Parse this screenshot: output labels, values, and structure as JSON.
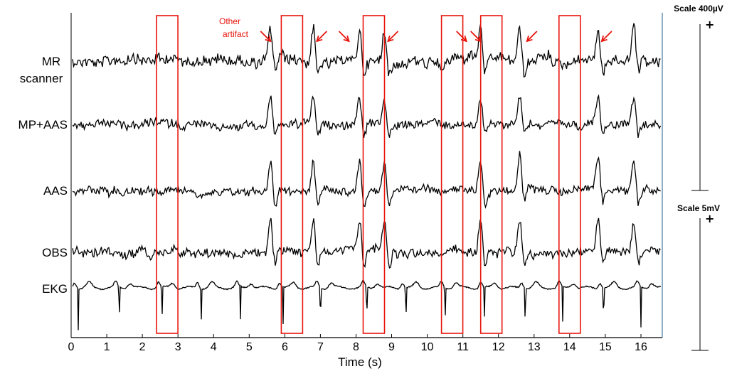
{
  "chart_data": {
    "type": "line",
    "xlabel": "Time (s)",
    "xlim": [
      0,
      16.6
    ],
    "x_ticks": [
      "0",
      "1",
      "2",
      "3",
      "4",
      "5",
      "6",
      "7",
      "8",
      "9",
      "10",
      "11",
      "12",
      "13",
      "14",
      "15",
      "16"
    ],
    "channels": [
      {
        "label_lines": [
          "MR",
          "scanner"
        ]
      },
      {
        "label_lines": [
          "MP+AAS"
        ]
      },
      {
        "label_lines": [
          "AAS"
        ]
      },
      {
        "label_lines": [
          "OBS"
        ]
      },
      {
        "label_lines": [
          "EKG"
        ]
      }
    ],
    "eeg_peak_times": [
      5.6,
      6.8,
      8.1,
      8.8,
      11.5,
      12.6,
      14.8,
      15.8
    ],
    "ekg_beat_times": [
      0.2,
      1.35,
      2.55,
      3.65,
      4.75,
      5.95,
      7.0,
      8.3,
      9.4,
      10.5,
      11.6,
      12.75,
      13.8,
      14.95,
      16.0
    ],
    "artifact_windows": [
      [
        2.4,
        3.0
      ],
      [
        5.9,
        6.5
      ],
      [
        8.2,
        8.8
      ],
      [
        10.4,
        11.0
      ],
      [
        11.5,
        12.1
      ],
      [
        13.7,
        14.3
      ]
    ],
    "artifact_arrow_times": [
      5.6,
      6.9,
      7.8,
      8.9,
      11.1,
      11.5,
      12.8,
      14.9
    ],
    "annotation": {
      "text_lines": [
        "Other",
        "artifact"
      ]
    },
    "scales": [
      {
        "label": "Scale 400µV"
      },
      {
        "label": "Scale 5mV"
      }
    ],
    "colors": {
      "trace": "#000000",
      "highlight": "#e8140c",
      "axis": "#000000"
    }
  }
}
